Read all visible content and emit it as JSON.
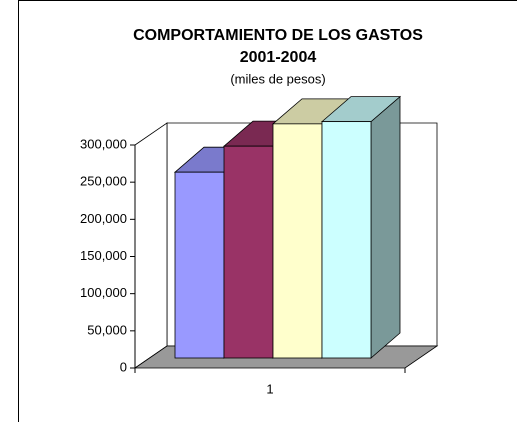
{
  "chart_data": {
    "type": "bar3d",
    "title": "COMPORTAMIENTO DE LOS GASTOS",
    "subtitle": "2001-2004",
    "note": "(miles de pesos)",
    "categories": [
      "1"
    ],
    "series": [
      {
        "color": "#9999ff",
        "values": [
          250000
        ]
      },
      {
        "color": "#993366",
        "values": [
          285000
        ]
      },
      {
        "color": "#ffffcc",
        "values": [
          315000
        ]
      },
      {
        "color": "#ccffff",
        "values": [
          318000
        ]
      }
    ],
    "ylim": [
      0,
      300000
    ],
    "yticks": [
      0,
      {
        "value": 50000,
        "label": "50,000"
      },
      {
        "value": 100000,
        "label": "100,000"
      },
      {
        "value": 150000,
        "label": "150,000"
      },
      {
        "value": 200000,
        "label": "200,000"
      },
      {
        "value": 250000,
        "label": "250,000"
      },
      {
        "value": 300000,
        "label": "300,000"
      }
    ],
    "floor_color": "#999999"
  }
}
